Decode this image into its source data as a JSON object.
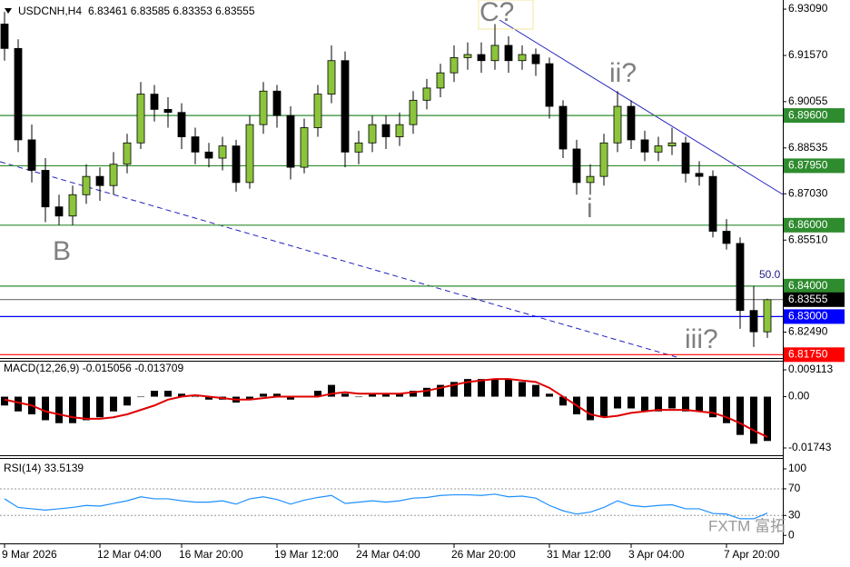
{
  "chart_data": [
    {
      "type": "candlestick",
      "title": "USDCNH,H4",
      "subtitle": "6.83461 6.83585 6.83353 6.83555",
      "up_color": "#8cc43c",
      "down_color": "#000000",
      "categories": [
        "9 Mar 2026",
        null,
        null,
        null,
        null,
        null,
        null,
        "12 Mar 04:00",
        null,
        null,
        null,
        null,
        null,
        "16 Mar 20:00",
        null,
        null,
        null,
        null,
        null,
        null,
        "19 Mar 12:00",
        null,
        null,
        null,
        null,
        null,
        "24 Mar 04:00",
        null,
        null,
        null,
        null,
        null,
        null,
        "26 Mar 20:00",
        null,
        null,
        null,
        null,
        null,
        null,
        "31 Mar 12:00",
        null,
        null,
        null,
        null,
        null,
        "3 Apr 04:00",
        null,
        null,
        null,
        null,
        null,
        null,
        "7 Apr 20:00",
        null,
        null,
        null
      ],
      "open": [
        6.926,
        6.918,
        6.888,
        6.878,
        6.866,
        6.863,
        6.87,
        6.876,
        6.873,
        6.88,
        6.887,
        6.903,
        6.898,
        6.897,
        6.889,
        6.884,
        6.882,
        6.886,
        6.874,
        6.893,
        6.904,
        6.896,
        6.879,
        6.892,
        6.903,
        6.914,
        6.884,
        6.887,
        6.893,
        6.889,
        6.893,
        6.901,
        6.905,
        6.91,
        6.915,
        6.916,
        6.914,
        6.919,
        6.914,
        6.916,
        6.913,
        6.899,
        6.885,
        6.874,
        6.876,
        6.887,
        6.899,
        6.888,
        6.884,
        6.886,
        6.887,
        6.877,
        6.876,
        6.858,
        6.854,
        6.832,
        6.825
      ],
      "high": [
        6.93,
        6.921,
        6.893,
        6.882,
        6.87,
        6.873,
        6.88,
        6.879,
        6.884,
        6.89,
        6.907,
        6.906,
        6.902,
        6.9,
        6.892,
        6.887,
        6.889,
        6.888,
        6.896,
        6.907,
        6.906,
        6.899,
        6.895,
        6.906,
        6.919,
        6.917,
        6.891,
        6.896,
        6.896,
        6.897,
        6.904,
        6.908,
        6.913,
        6.919,
        6.92,
        6.92,
        6.926,
        6.922,
        6.919,
        6.918,
        6.915,
        6.901,
        6.888,
        6.88,
        6.89,
        6.904,
        6.901,
        6.891,
        6.889,
        6.892,
        6.889,
        6.881,
        6.878,
        6.862,
        6.856,
        6.84,
        6.83585
      ],
      "low": [
        6.914,
        6.884,
        6.874,
        6.861,
        6.86,
        6.86,
        6.867,
        6.868,
        6.87,
        6.877,
        6.885,
        6.894,
        6.892,
        6.885,
        6.88,
        6.879,
        6.878,
        6.871,
        6.872,
        6.89,
        6.892,
        6.875,
        6.877,
        6.889,
        6.9,
        6.879,
        6.88,
        6.884,
        6.885,
        6.886,
        6.89,
        6.898,
        6.902,
        6.907,
        6.911,
        6.91,
        6.911,
        6.91,
        6.911,
        6.909,
        6.895,
        6.882,
        6.87,
        6.87,
        6.873,
        6.884,
        6.885,
        6.881,
        6.881,
        6.883,
        6.874,
        6.873,
        6.856,
        6.852,
        6.826,
        6.82,
        6.823
      ],
      "close": [
        6.918,
        6.888,
        6.878,
        6.866,
        6.863,
        6.87,
        6.876,
        6.873,
        6.88,
        6.887,
        6.903,
        6.898,
        6.897,
        6.889,
        6.884,
        6.882,
        6.886,
        6.874,
        6.893,
        6.904,
        6.896,
        6.879,
        6.892,
        6.903,
        6.914,
        6.884,
        6.887,
        6.893,
        6.889,
        6.893,
        6.901,
        6.905,
        6.91,
        6.915,
        6.916,
        6.914,
        6.919,
        6.914,
        6.916,
        6.913,
        6.899,
        6.885,
        6.874,
        6.876,
        6.887,
        6.899,
        6.888,
        6.884,
        6.886,
        6.887,
        6.877,
        6.876,
        6.858,
        6.854,
        6.832,
        6.825,
        6.83555
      ],
      "ylim": [
        6.8167,
        6.9339
      ],
      "yticks": [
        {
          "value": 6.9309,
          "label": "6.93090"
        },
        {
          "value": 6.9157,
          "label": "6.91570"
        },
        {
          "value": 6.90055,
          "label": "6.90055"
        },
        {
          "value": 6.88535,
          "label": "6.88535"
        },
        {
          "value": 6.8703,
          "label": "6.87030"
        },
        {
          "value": 6.8551,
          "label": "6.85510"
        },
        {
          "value": 6.8249,
          "label": "6.82490"
        }
      ],
      "levels": [
        {
          "value": 6.896,
          "label": "6.89600",
          "color": "#2e8b2e"
        },
        {
          "value": 6.8795,
          "label": "6.87950",
          "color": "#2e8b2e"
        },
        {
          "value": 6.86,
          "label": "6.86000",
          "color": "#2e8b2e"
        },
        {
          "value": 6.84,
          "label": "6.84000",
          "color": "#2e8b2e"
        },
        {
          "value": 6.83555,
          "label": "6.83555",
          "color": "#000000"
        },
        {
          "value": 6.83,
          "label": "6.83000",
          "color": "#0000ff"
        },
        {
          "value": 6.8175,
          "label": "6.81750",
          "color": "#ff0000"
        }
      ],
      "annotations": [
        "C?",
        "ii?",
        "i",
        "B",
        "iii?",
        "50.0"
      ],
      "watermark": "FXTM 富拓"
    },
    {
      "type": "macd",
      "title": "MACD(12,26,9) -0.015056 -0.013709",
      "ylim": [
        -0.0199,
        0.0119
      ],
      "yticks": [
        0.009113,
        {
          "value": 0,
          "label": "0.00"
        },
        -0.01743
      ],
      "series": [
        {
          "color": "#000000",
          "values": [
            -0.003,
            -0.005,
            -0.006,
            -0.008,
            -0.009,
            -0.009,
            -0.008,
            -0.007,
            -0.005,
            -0.003,
            0.0,
            0.002,
            0.002,
            0.001,
            0.0,
            -0.001,
            -0.001,
            -0.002,
            -0.001,
            0.001,
            0.001,
            -0.001,
            0.0,
            0.002,
            0.004,
            0.001,
            0.0,
            0.001,
            0.001,
            0.001,
            0.002,
            0.003,
            0.004,
            0.005,
            0.006,
            0.006,
            0.006,
            0.006,
            0.005,
            0.004,
            0.001,
            -0.003,
            -0.006,
            -0.008,
            -0.007,
            -0.004,
            -0.004,
            -0.005,
            -0.005,
            -0.004,
            -0.005,
            -0.005,
            -0.007,
            -0.009,
            -0.013,
            -0.016,
            -0.015056
          ]
        },
        {
          "color": "#e00000",
          "values": [
            -0.001,
            -0.002,
            -0.003,
            -0.005,
            -0.006,
            -0.007,
            -0.0075,
            -0.0075,
            -0.007,
            -0.006,
            -0.0045,
            -0.003,
            -0.001,
            0.0,
            0.0005,
            0.0,
            -0.0005,
            -0.001,
            -0.001,
            -0.0005,
            0.0,
            0.0,
            0.0,
            0.0,
            0.001,
            0.0015,
            0.001,
            0.001,
            0.001,
            0.001,
            0.0015,
            0.002,
            0.003,
            0.004,
            0.005,
            0.0055,
            0.006,
            0.006,
            0.0055,
            0.005,
            0.003,
            0.0,
            -0.003,
            -0.006,
            -0.007,
            -0.0065,
            -0.0055,
            -0.005,
            -0.0045,
            -0.0045,
            -0.0045,
            -0.005,
            -0.0055,
            -0.007,
            -0.009,
            -0.0115,
            -0.013709
          ]
        }
      ]
    },
    {
      "type": "line",
      "title": "RSI(14) 33.5139",
      "color": "#1e90ff",
      "ylim": [
        -12,
        115
      ],
      "yticks": [
        100,
        70,
        30,
        0
      ],
      "levels": [
        70,
        30
      ],
      "values": [
        55,
        42,
        40,
        38,
        40,
        42,
        45,
        44,
        48,
        52,
        58,
        55,
        55,
        52,
        50,
        50,
        52,
        47,
        55,
        58,
        54,
        47,
        53,
        57,
        60,
        48,
        50,
        52,
        50,
        52,
        56,
        57,
        60,
        61,
        61,
        60,
        62,
        58,
        59,
        56,
        45,
        37,
        32,
        35,
        42,
        52,
        45,
        43,
        45,
        46,
        40,
        40,
        33,
        32,
        25,
        25,
        33.5139
      ]
    }
  ]
}
